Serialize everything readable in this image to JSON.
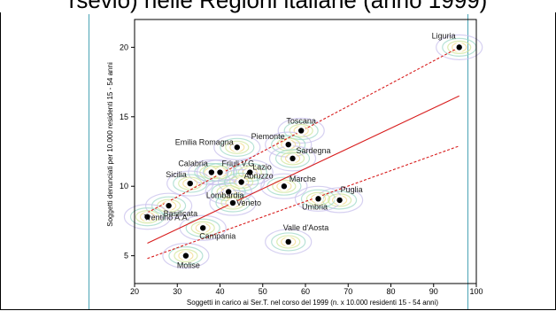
{
  "caption": "rsevio) nelle Regioni italiane (anno 1999)",
  "chart_data": {
    "type": "scatter",
    "xlabel": "Soggetti in carico ai Ser.T. nel corso del 1999 (n. x 10.000 residenti  15 - 54 anni)",
    "ylabel": "Soggetti denunciati per 10.000 residenti 15 - 54 anni",
    "xlim": [
      20,
      100
    ],
    "ylim": [
      3,
      22
    ],
    "xticks": [
      "20",
      "30",
      "40",
      "50",
      "60",
      "70",
      "80",
      "90",
      "100"
    ],
    "yticks": [
      "5",
      "10",
      "15",
      "20"
    ],
    "points": [
      {
        "label": "Liguria",
        "x": 96,
        "y": 20
      },
      {
        "label": "Toscana",
        "x": 59,
        "y": 14
      },
      {
        "label": "Piemonte",
        "x": 56,
        "y": 13
      },
      {
        "label": "Sardegna",
        "x": 57,
        "y": 12
      },
      {
        "label": "Emilia Romagna",
        "x": 44,
        "y": 12.8
      },
      {
        "label": "Calabria",
        "x": 38,
        "y": 11
      },
      {
        "label": "Friuli V.G.",
        "x": 40,
        "y": 11
      },
      {
        "label": "Lazio",
        "x": 47,
        "y": 11
      },
      {
        "label": "Sicilia",
        "x": 33,
        "y": 10.2
      },
      {
        "label": "Abruzzo",
        "x": 45,
        "y": 10.3
      },
      {
        "label": "Marche",
        "x": 55,
        "y": 10
      },
      {
        "label": "Lombardia",
        "x": 42,
        "y": 9.6
      },
      {
        "label": "Puglia",
        "x": 68,
        "y": 9
      },
      {
        "label": "Umbria",
        "x": 63,
        "y": 9.1
      },
      {
        "label": "Basilicata",
        "x": 28,
        "y": 8.6
      },
      {
        "label": "Veneto",
        "x": 43,
        "y": 8.8
      },
      {
        "label": "Trentino A.A.",
        "x": 23,
        "y": 7.8
      },
      {
        "label": "Campania",
        "x": 36,
        "y": 7
      },
      {
        "label": "Valle d'Aosta",
        "x": 56,
        "y": 6
      },
      {
        "label": "Molise",
        "x": 32,
        "y": 5
      }
    ],
    "fit_line": {
      "x": [
        23,
        96
      ],
      "y": [
        5.9,
        16.5
      ]
    },
    "ci_upper": {
      "x": [
        23,
        96
      ],
      "y": [
        8.1,
        20.0
      ]
    },
    "ci_lower": {
      "x": [
        23,
        96
      ],
      "y": [
        4.8,
        12.9
      ]
    },
    "colors": {
      "fit": "#d81e1e",
      "points": "#000000",
      "contours": [
        "#c8c0ec",
        "#9fd8c8",
        "#cfe59a",
        "#f3d98a"
      ]
    }
  }
}
